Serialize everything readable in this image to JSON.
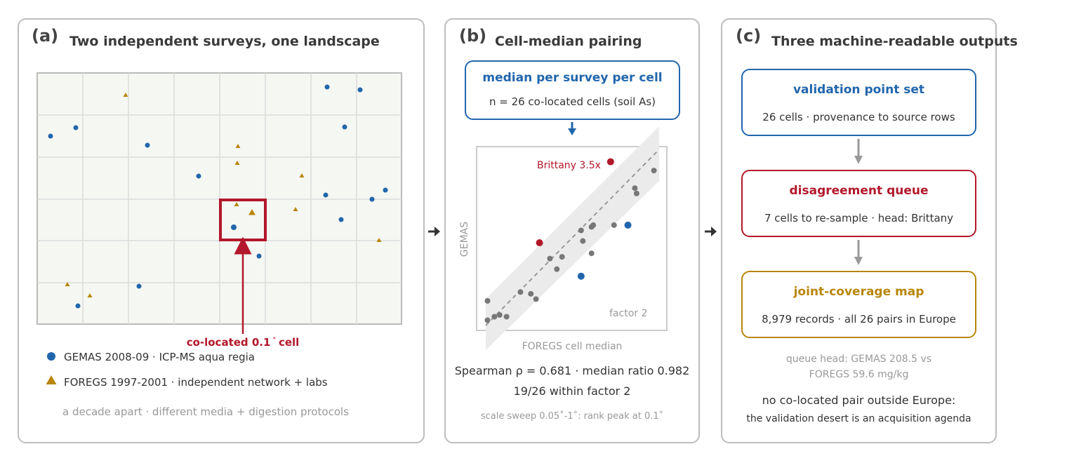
{
  "colors": {
    "gemas": "#2166ac",
    "foregs": "#b8860b",
    "highlight": "#b2182b",
    "neutral": "#777777",
    "grey_text": "#999999"
  },
  "panel_a": {
    "label": "(a)",
    "title": "Two independent surveys, one landscape",
    "callout": "co-located 0.1",
    "callout_degree": "°",
    "callout_suffix": "cell",
    "legend": [
      {
        "symbol": "circle",
        "text": "GEMAS 2008-09 · ICP-MS aqua regia"
      },
      {
        "symbol": "triangle",
        "text": "FOREGS 1997-2001 · independent network + labs"
      }
    ],
    "footnote": "a decade apart · different media + digestion protocols"
  },
  "panel_b": {
    "label": "(b)",
    "title": "Cell-median pairing",
    "box_title": "median per survey per cell",
    "box_sub": "n = 26 co-located cells (soil As)",
    "plot_outlier_label": "Brittany 3.5x",
    "plot_band_label": "factor 2",
    "xlabel": "FOREGS cell median",
    "ylabel": "GEMAS",
    "stat_line1": "Spearman ρ = 0.681 · median ratio 0.982",
    "stat_line2": "19/26 within factor 2",
    "stat_line3": "scale sweep 0.05˚-1˚: rank peak at 0.1˚"
  },
  "panel_c": {
    "label": "(c)",
    "title": "Three machine-readable outputs",
    "boxes": [
      {
        "title": "validation point set",
        "sub": "26 cells · provenance to source rows"
      },
      {
        "title": "disagreement queue",
        "sub": "7 cells to re-sample · head: Brittany"
      },
      {
        "title": "joint-coverage map",
        "sub": "8,979 records · all 26 pairs in Europe"
      }
    ],
    "note_line1": "queue head: GEMAS 208.5 vs",
    "note_line2": "FOREGS 59.6 mg/kg",
    "final_line1": "no co-located pair outside Europe:",
    "final_line2": "the validation desert is an acquisition agenda"
  },
  "chart_data": {
    "type": "scatter",
    "title": "",
    "xlabel": "FOREGS cell median",
    "ylabel": "GEMAS",
    "annotations": [
      "Brittany 3.5x",
      "factor 2"
    ],
    "series": [
      {
        "points": [
          [
            0.05,
            0.05
          ],
          [
            0.08,
            0.06
          ],
          [
            0.12,
            0.05
          ],
          [
            0.01,
            0.14
          ],
          [
            0.2,
            0.19
          ],
          [
            0.26,
            0.18
          ],
          [
            0.29,
            0.15
          ],
          [
            0.37,
            0.38
          ],
          [
            0.41,
            0.32
          ],
          [
            0.44,
            0.39
          ],
          [
            0.56,
            0.48
          ],
          [
            0.55,
            0.54
          ],
          [
            0.61,
            0.56
          ],
          [
            0.62,
            0.57
          ],
          [
            0.61,
            0.41
          ],
          [
            0.74,
            0.57
          ],
          [
            0.86,
            0.78
          ],
          [
            0.87,
            0.75
          ],
          [
            0.97,
            0.88
          ],
          [
            0.01,
            0.03
          ]
        ]
      },
      {
        "points": [
          [
            0.31,
            0.47
          ],
          [
            0.72,
            0.93
          ]
        ]
      },
      {
        "points": [
          [
            0.55,
            0.28
          ],
          [
            0.82,
            0.57
          ]
        ]
      }
    ]
  }
}
